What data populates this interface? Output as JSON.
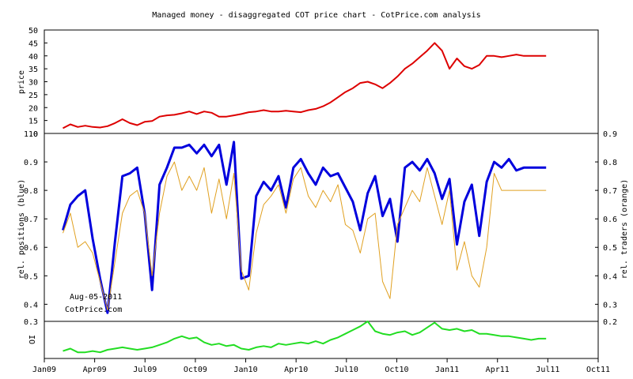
{
  "chart_data": {
    "type": "line",
    "title": "Managed money - disaggregated COT price chart - CotPrice.com analysis",
    "x_tick_labels": [
      "Jan09",
      "Apr09",
      "Jul09",
      "Oct09",
      "Jan10",
      "Apr10",
      "Jul10",
      "Oct10",
      "Jan11",
      "Apr11",
      "Jul11",
      "Oct11"
    ],
    "watermark": {
      "date": "Aug-05-2011",
      "site": "CotPrice.com"
    },
    "panels": [
      {
        "id": "price",
        "ylabel": "price",
        "yticks": [
          "10",
          "15",
          "20",
          "25",
          "30",
          "35",
          "40",
          "45",
          "50"
        ],
        "ylim": [
          10,
          50
        ],
        "series": [
          {
            "color": "#dd0000",
            "x": [
              0,
              2,
              4,
              6,
              8,
              10,
              12,
              14,
              16,
              18,
              20,
              22,
              24,
              26,
              28,
              30,
              32,
              34,
              36,
              38,
              40,
              42,
              44,
              46,
              48,
              50,
              52,
              54,
              56,
              58,
              60,
              62,
              64,
              66,
              68,
              70,
              72,
              74,
              76,
              78,
              80,
              82,
              84,
              86,
              88,
              90,
              92,
              94,
              96,
              98,
              100,
              102,
              104,
              106,
              108,
              110,
              112,
              114,
              116,
              118,
              120,
              122,
              124,
              126,
              128,
              130
            ],
            "y": [
              12,
              13.5,
              12.5,
              13,
              12.5,
              12.3,
              12.8,
              14,
              15.5,
              14,
              13.2,
              14.5,
              14.8,
              16.5,
              17,
              17.2,
              17.8,
              18.5,
              17.5,
              18.5,
              18,
              16.5,
              16.5,
              17,
              17.5,
              18.2,
              18.5,
              19,
              18.5,
              18.5,
              18.8,
              18.5,
              18.2,
              19,
              19.5,
              20.5,
              22,
              24,
              26,
              27.5,
              29.5,
              30,
              29,
              27.5,
              29.5,
              32,
              35,
              37,
              39.5,
              42,
              45,
              42,
              35,
              39,
              36,
              35,
              36.5,
              40,
              40,
              39.5,
              40,
              40.5,
              40,
              40,
              40,
              40
            ]
          }
        ]
      },
      {
        "id": "rel_positions",
        "ylabel": "rel. positions (blue)",
        "y2label": "rel. traders (orange)",
        "yticks": [
          "0.4",
          "0.5",
          "0.6",
          "0.7",
          "0.8",
          "0.9",
          "1.0"
        ],
        "y2ticks": [
          "0.3",
          "0.4",
          "0.5",
          "0.6",
          "0.7",
          "0.8",
          "0.9"
        ],
        "ylim": [
          0.34,
          1.0
        ],
        "y2lim": [
          0.24,
          0.9
        ],
        "series": [
          {
            "name": "rel. positions (blue)",
            "color": "#0000dd",
            "x": [
              0,
              2,
              4,
              6,
              8,
              10,
              12,
              14,
              16,
              18,
              20,
              22,
              24,
              26,
              28,
              30,
              32,
              34,
              36,
              38,
              40,
              42,
              44,
              46,
              48,
              50,
              52,
              54,
              56,
              58,
              60,
              62,
              64,
              66,
              68,
              70,
              72,
              74,
              76,
              78,
              80,
              82,
              84,
              86,
              88,
              90,
              92,
              94,
              96,
              98,
              100,
              102,
              104,
              106,
              108,
              110,
              112,
              114,
              116,
              118,
              120,
              122,
              124,
              126,
              128,
              130
            ],
            "y": [
              0.66,
              0.75,
              0.78,
              0.8,
              0.63,
              0.49,
              0.37,
              0.62,
              0.85,
              0.86,
              0.88,
              0.72,
              0.45,
              0.82,
              0.88,
              0.95,
              0.95,
              0.96,
              0.93,
              0.96,
              0.92,
              0.96,
              0.82,
              0.97,
              0.49,
              0.5,
              0.78,
              0.83,
              0.8,
              0.85,
              0.74,
              0.88,
              0.91,
              0.86,
              0.82,
              0.88,
              0.85,
              0.86,
              0.81,
              0.76,
              0.66,
              0.79,
              0.85,
              0.71,
              0.77,
              0.62,
              0.88,
              0.9,
              0.87,
              0.91,
              0.86,
              0.77,
              0.84,
              0.61,
              0.76,
              0.82,
              0.64,
              0.83,
              0.9,
              0.88,
              0.91,
              0.87,
              0.88,
              0.88,
              0.88,
              0.88
            ]
          },
          {
            "name": "rel. traders (orange)",
            "color": "#e0a020",
            "x": [
              0,
              2,
              4,
              6,
              8,
              10,
              12,
              14,
              16,
              18,
              20,
              22,
              24,
              26,
              28,
              30,
              32,
              34,
              36,
              38,
              40,
              42,
              44,
              46,
              48,
              50,
              52,
              54,
              56,
              58,
              60,
              62,
              64,
              66,
              68,
              70,
              72,
              74,
              76,
              78,
              80,
              82,
              84,
              86,
              88,
              90,
              92,
              94,
              96,
              98,
              100,
              102,
              104,
              106,
              108,
              110,
              112,
              114,
              116,
              118,
              120,
              122,
              124,
              126,
              128,
              130
            ],
            "y": [
              0.55,
              0.62,
              0.5,
              0.52,
              0.48,
              0.38,
              0.28,
              0.45,
              0.62,
              0.68,
              0.7,
              0.62,
              0.4,
              0.62,
              0.75,
              0.8,
              0.7,
              0.75,
              0.7,
              0.78,
              0.62,
              0.74,
              0.6,
              0.76,
              0.42,
              0.35,
              0.55,
              0.65,
              0.68,
              0.72,
              0.62,
              0.74,
              0.78,
              0.68,
              0.64,
              0.7,
              0.66,
              0.72,
              0.58,
              0.56,
              0.48,
              0.6,
              0.62,
              0.38,
              0.32,
              0.58,
              0.64,
              0.7,
              0.66,
              0.78,
              0.68,
              0.58,
              0.7,
              0.42,
              0.52,
              0.4,
              0.36,
              0.5,
              0.76,
              0.7,
              0.7,
              0.7,
              0.7,
              0.7,
              0.7,
              0.7
            ]
          }
        ]
      },
      {
        "id": "oi",
        "ylabel": "OI",
        "yticks": [
          "0.3"
        ],
        "y2ticks": [
          "0.2"
        ],
        "ylim": [
          0,
          0.3
        ],
        "series": [
          {
            "color": "#22dd22",
            "x": [
              0,
              2,
              4,
              6,
              8,
              10,
              12,
              14,
              16,
              18,
              20,
              22,
              24,
              26,
              28,
              30,
              32,
              34,
              36,
              38,
              40,
              42,
              44,
              46,
              48,
              50,
              52,
              54,
              56,
              58,
              60,
              62,
              64,
              66,
              68,
              70,
              72,
              74,
              76,
              78,
              80,
              82,
              84,
              86,
              88,
              90,
              92,
              94,
              96,
              98,
              100,
              102,
              104,
              106,
              108,
              110,
              112,
              114,
              116,
              118,
              120,
              122,
              124,
              126,
              128,
              130
            ],
            "y": [
              0.06,
              0.08,
              0.05,
              0.05,
              0.06,
              0.05,
              0.07,
              0.08,
              0.09,
              0.08,
              0.07,
              0.08,
              0.09,
              0.11,
              0.13,
              0.16,
              0.18,
              0.16,
              0.17,
              0.13,
              0.11,
              0.12,
              0.1,
              0.11,
              0.08,
              0.07,
              0.09,
              0.1,
              0.09,
              0.12,
              0.11,
              0.12,
              0.13,
              0.12,
              0.14,
              0.12,
              0.15,
              0.17,
              0.2,
              0.23,
              0.26,
              0.3,
              0.22,
              0.2,
              0.19,
              0.21,
              0.22,
              0.19,
              0.21,
              0.25,
              0.29,
              0.24,
              0.23,
              0.24,
              0.22,
              0.23,
              0.2,
              0.2,
              0.19,
              0.18,
              0.18,
              0.17,
              0.16,
              0.15,
              0.16,
              0.16
            ]
          }
        ]
      }
    ]
  }
}
